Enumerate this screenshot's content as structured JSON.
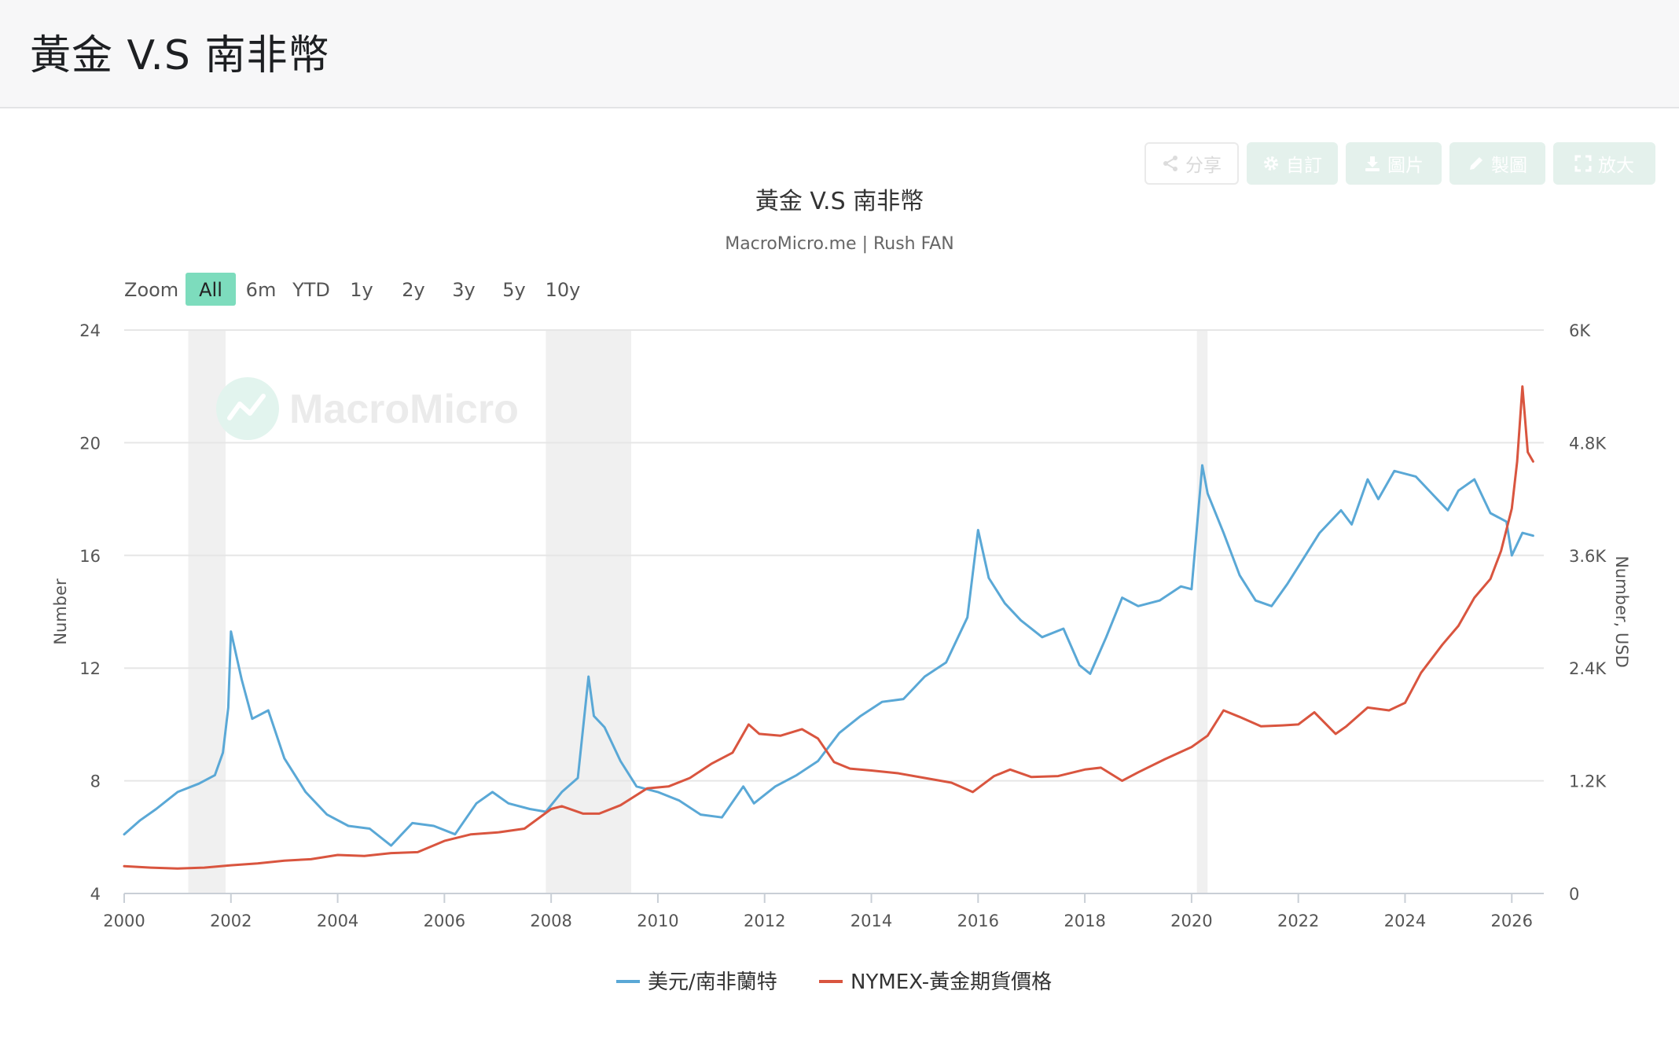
{
  "page": {
    "title": "黃金 V.S 南非幣"
  },
  "toolbar": {
    "share": "分享",
    "customize": "自訂",
    "image": "圖片",
    "draw": "製圖",
    "expand": "放大"
  },
  "colors": {
    "usd_zar": "#5aa8d6",
    "gold": "#d9553f",
    "zoom_active": "#7ddcbd",
    "recession_band": "#f0f0f0",
    "grid": "#e6e6e6"
  },
  "chart_data": {
    "type": "line",
    "title": "黃金 V.S 南非幣",
    "subtitle": "MacroMicro.me | Rush FAN",
    "watermark": "MacroMicro",
    "zoom": {
      "label": "Zoom",
      "options": [
        "All",
        "6m",
        "YTD",
        "1y",
        "2y",
        "3y",
        "5y",
        "10y"
      ],
      "selected": "All"
    },
    "xlim": [
      2000,
      2026.6
    ],
    "x_ticks": [
      "2000",
      "2002",
      "2004",
      "2006",
      "2008",
      "2010",
      "2012",
      "2014",
      "2016",
      "2018",
      "2020",
      "2022",
      "2024",
      "2026"
    ],
    "y_left": {
      "label": "Number",
      "lim": [
        4,
        24
      ],
      "ticks": [
        "4",
        "8",
        "12",
        "16",
        "20",
        "24"
      ]
    },
    "y_right": {
      "label": "Number, USD",
      "lim": [
        0,
        6000
      ],
      "ticks": [
        "0",
        "1.2K",
        "2.4K",
        "3.6K",
        "4.8K",
        "6K"
      ]
    },
    "grid": true,
    "legend_position": "bottom-center",
    "shaded_periods": [
      [
        2001.2,
        2001.9
      ],
      [
        2007.9,
        2009.5
      ],
      [
        2020.1,
        2020.3
      ]
    ],
    "series": [
      {
        "name": "美元/南非蘭特",
        "axis": "left",
        "x": [
          2000.0,
          2000.3,
          2000.6,
          2001.0,
          2001.4,
          2001.7,
          2001.85,
          2001.95,
          2002.0,
          2002.2,
          2002.4,
          2002.7,
          2003.0,
          2003.4,
          2003.8,
          2004.2,
          2004.6,
          2005.0,
          2005.4,
          2005.8,
          2006.2,
          2006.6,
          2006.9,
          2007.2,
          2007.6,
          2007.9,
          2008.2,
          2008.5,
          2008.7,
          2008.8,
          2009.0,
          2009.3,
          2009.6,
          2010.0,
          2010.4,
          2010.8,
          2011.2,
          2011.6,
          2011.8,
          2012.2,
          2012.6,
          2013.0,
          2013.4,
          2013.8,
          2014.2,
          2014.6,
          2015.0,
          2015.4,
          2015.8,
          2016.0,
          2016.2,
          2016.5,
          2016.8,
          2017.2,
          2017.6,
          2017.9,
          2018.1,
          2018.4,
          2018.7,
          2019.0,
          2019.4,
          2019.8,
          2020.0,
          2020.2,
          2020.3,
          2020.6,
          2020.9,
          2021.2,
          2021.5,
          2021.8,
          2022.0,
          2022.4,
          2022.8,
          2023.0,
          2023.3,
          2023.5,
          2023.8,
          2024.2,
          2024.5,
          2024.8,
          2025.0,
          2025.3,
          2025.6,
          2025.9,
          2026.0,
          2026.2,
          2026.4
        ],
        "values": [
          6.1,
          6.6,
          7.0,
          7.6,
          7.9,
          8.2,
          9.0,
          10.6,
          13.3,
          11.6,
          10.2,
          10.5,
          8.8,
          7.6,
          6.8,
          6.4,
          6.3,
          5.7,
          6.5,
          6.4,
          6.1,
          7.2,
          7.6,
          7.2,
          7.0,
          6.9,
          7.6,
          8.1,
          11.7,
          10.3,
          9.9,
          8.7,
          7.8,
          7.6,
          7.3,
          6.8,
          6.7,
          7.8,
          7.2,
          7.8,
          8.2,
          8.7,
          9.7,
          10.3,
          10.8,
          10.9,
          11.7,
          12.2,
          13.8,
          16.9,
          15.2,
          14.3,
          13.7,
          13.1,
          13.4,
          12.1,
          11.8,
          13.1,
          14.5,
          14.2,
          14.4,
          14.9,
          14.8,
          19.2,
          18.2,
          16.8,
          15.3,
          14.4,
          14.2,
          15.0,
          15.6,
          16.8,
          17.6,
          17.1,
          18.7,
          18.0,
          19.0,
          18.8,
          18.2,
          17.6,
          18.3,
          18.7,
          17.5,
          17.2,
          16.0,
          16.8,
          16.7
        ]
      },
      {
        "name": "NYMEX-黃金期貨價格",
        "axis": "right",
        "x": [
          2000.0,
          2000.5,
          2001.0,
          2001.5,
          2002.0,
          2002.5,
          2003.0,
          2003.5,
          2004.0,
          2004.5,
          2005.0,
          2005.5,
          2006.0,
          2006.5,
          2007.0,
          2007.5,
          2008.0,
          2008.2,
          2008.6,
          2008.9,
          2009.3,
          2009.8,
          2010.2,
          2010.6,
          2011.0,
          2011.4,
          2011.7,
          2011.9,
          2012.3,
          2012.7,
          2013.0,
          2013.3,
          2013.6,
          2014.0,
          2014.5,
          2015.0,
          2015.5,
          2015.9,
          2016.3,
          2016.6,
          2017.0,
          2017.5,
          2018.0,
          2018.3,
          2018.7,
          2019.0,
          2019.5,
          2020.0,
          2020.3,
          2020.6,
          2020.9,
          2021.3,
          2021.7,
          2022.0,
          2022.3,
          2022.7,
          2022.9,
          2023.3,
          2023.7,
          2024.0,
          2024.3,
          2024.7,
          2025.0,
          2025.3,
          2025.6,
          2025.8,
          2026.0,
          2026.1,
          2026.2,
          2026.3,
          2026.4
        ],
        "values": [
          290,
          275,
          265,
          275,
          300,
          320,
          350,
          365,
          410,
          400,
          430,
          440,
          560,
          630,
          650,
          690,
          900,
          930,
          850,
          850,
          940,
          1120,
          1140,
          1230,
          1380,
          1500,
          1800,
          1700,
          1680,
          1750,
          1650,
          1400,
          1330,
          1310,
          1280,
          1230,
          1180,
          1080,
          1250,
          1320,
          1240,
          1250,
          1320,
          1340,
          1200,
          1290,
          1430,
          1560,
          1680,
          1950,
          1880,
          1780,
          1790,
          1800,
          1930,
          1700,
          1780,
          1980,
          1950,
          2030,
          2350,
          2650,
          2850,
          3150,
          3350,
          3650,
          4100,
          4600,
          5400,
          4700,
          4600
        ]
      }
    ]
  }
}
